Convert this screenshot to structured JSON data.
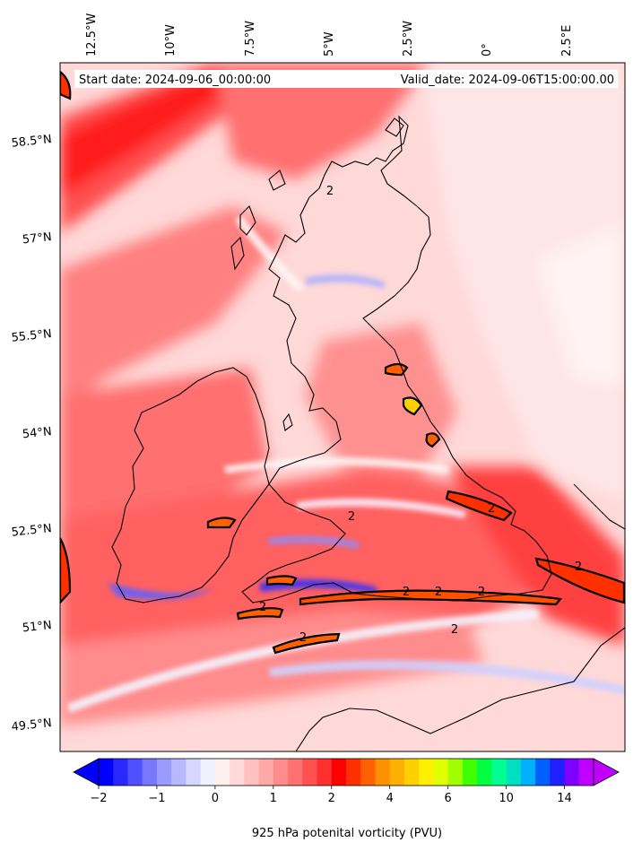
{
  "chart_data": {
    "type": "heatmap",
    "title": "",
    "start_date_label": "Start date: 2024-09-06_00:00:00",
    "valid_date_label": "Valid_date: 2024-09-06T15:00:00.00",
    "colorbar_label": "925 hPa potenital vorticity (PVU)",
    "lon_ticks": [
      "12.5°W",
      "10°W",
      "7.5°W",
      "5°W",
      "2.5°W",
      "0°",
      "2.5°E"
    ],
    "lat_ticks": [
      "58.5°N",
      "57°N",
      "55.5°N",
      "54°N",
      "52.5°N",
      "51°N",
      "49.5°N"
    ],
    "colorbar_ticks": [
      "−2",
      "−1",
      "0",
      "1",
      "2",
      "4",
      "6",
      "10",
      "14"
    ],
    "colorbar_levels": [
      -2,
      -1.75,
      -1.5,
      -1.25,
      -1,
      -0.75,
      -0.5,
      -0.25,
      0,
      0.25,
      0.5,
      0.75,
      1,
      1.25,
      1.5,
      1.75,
      2,
      2.5,
      3,
      3.5,
      4,
      4.5,
      5,
      5.5,
      6,
      7,
      8,
      9,
      10,
      11,
      12,
      13,
      14
    ],
    "colorbar_colors": [
      "#0000ff",
      "#2828ff",
      "#5050ff",
      "#7878ff",
      "#9a9aff",
      "#b8b8ff",
      "#d6d6ff",
      "#f0f0ff",
      "#fff0f0",
      "#ffd8d8",
      "#ffc0c0",
      "#ffa8a8",
      "#ff8c8c",
      "#ff7070",
      "#ff5050",
      "#ff3030",
      "#ff0000",
      "#ff3000",
      "#ff6000",
      "#ff9000",
      "#ffb000",
      "#ffd000",
      "#fff000",
      "#e0ff00",
      "#a0ff00",
      "#40ff00",
      "#00ff40",
      "#00ff90",
      "#00e0c0",
      "#00b0ff",
      "#0060ff",
      "#2020ff",
      "#8000ff",
      "#c000ff"
    ],
    "contour_level": "2",
    "contour_labels": [
      "2",
      "2",
      "2",
      "2",
      "2",
      "2",
      "2",
      "2",
      "2",
      "2"
    ]
  }
}
